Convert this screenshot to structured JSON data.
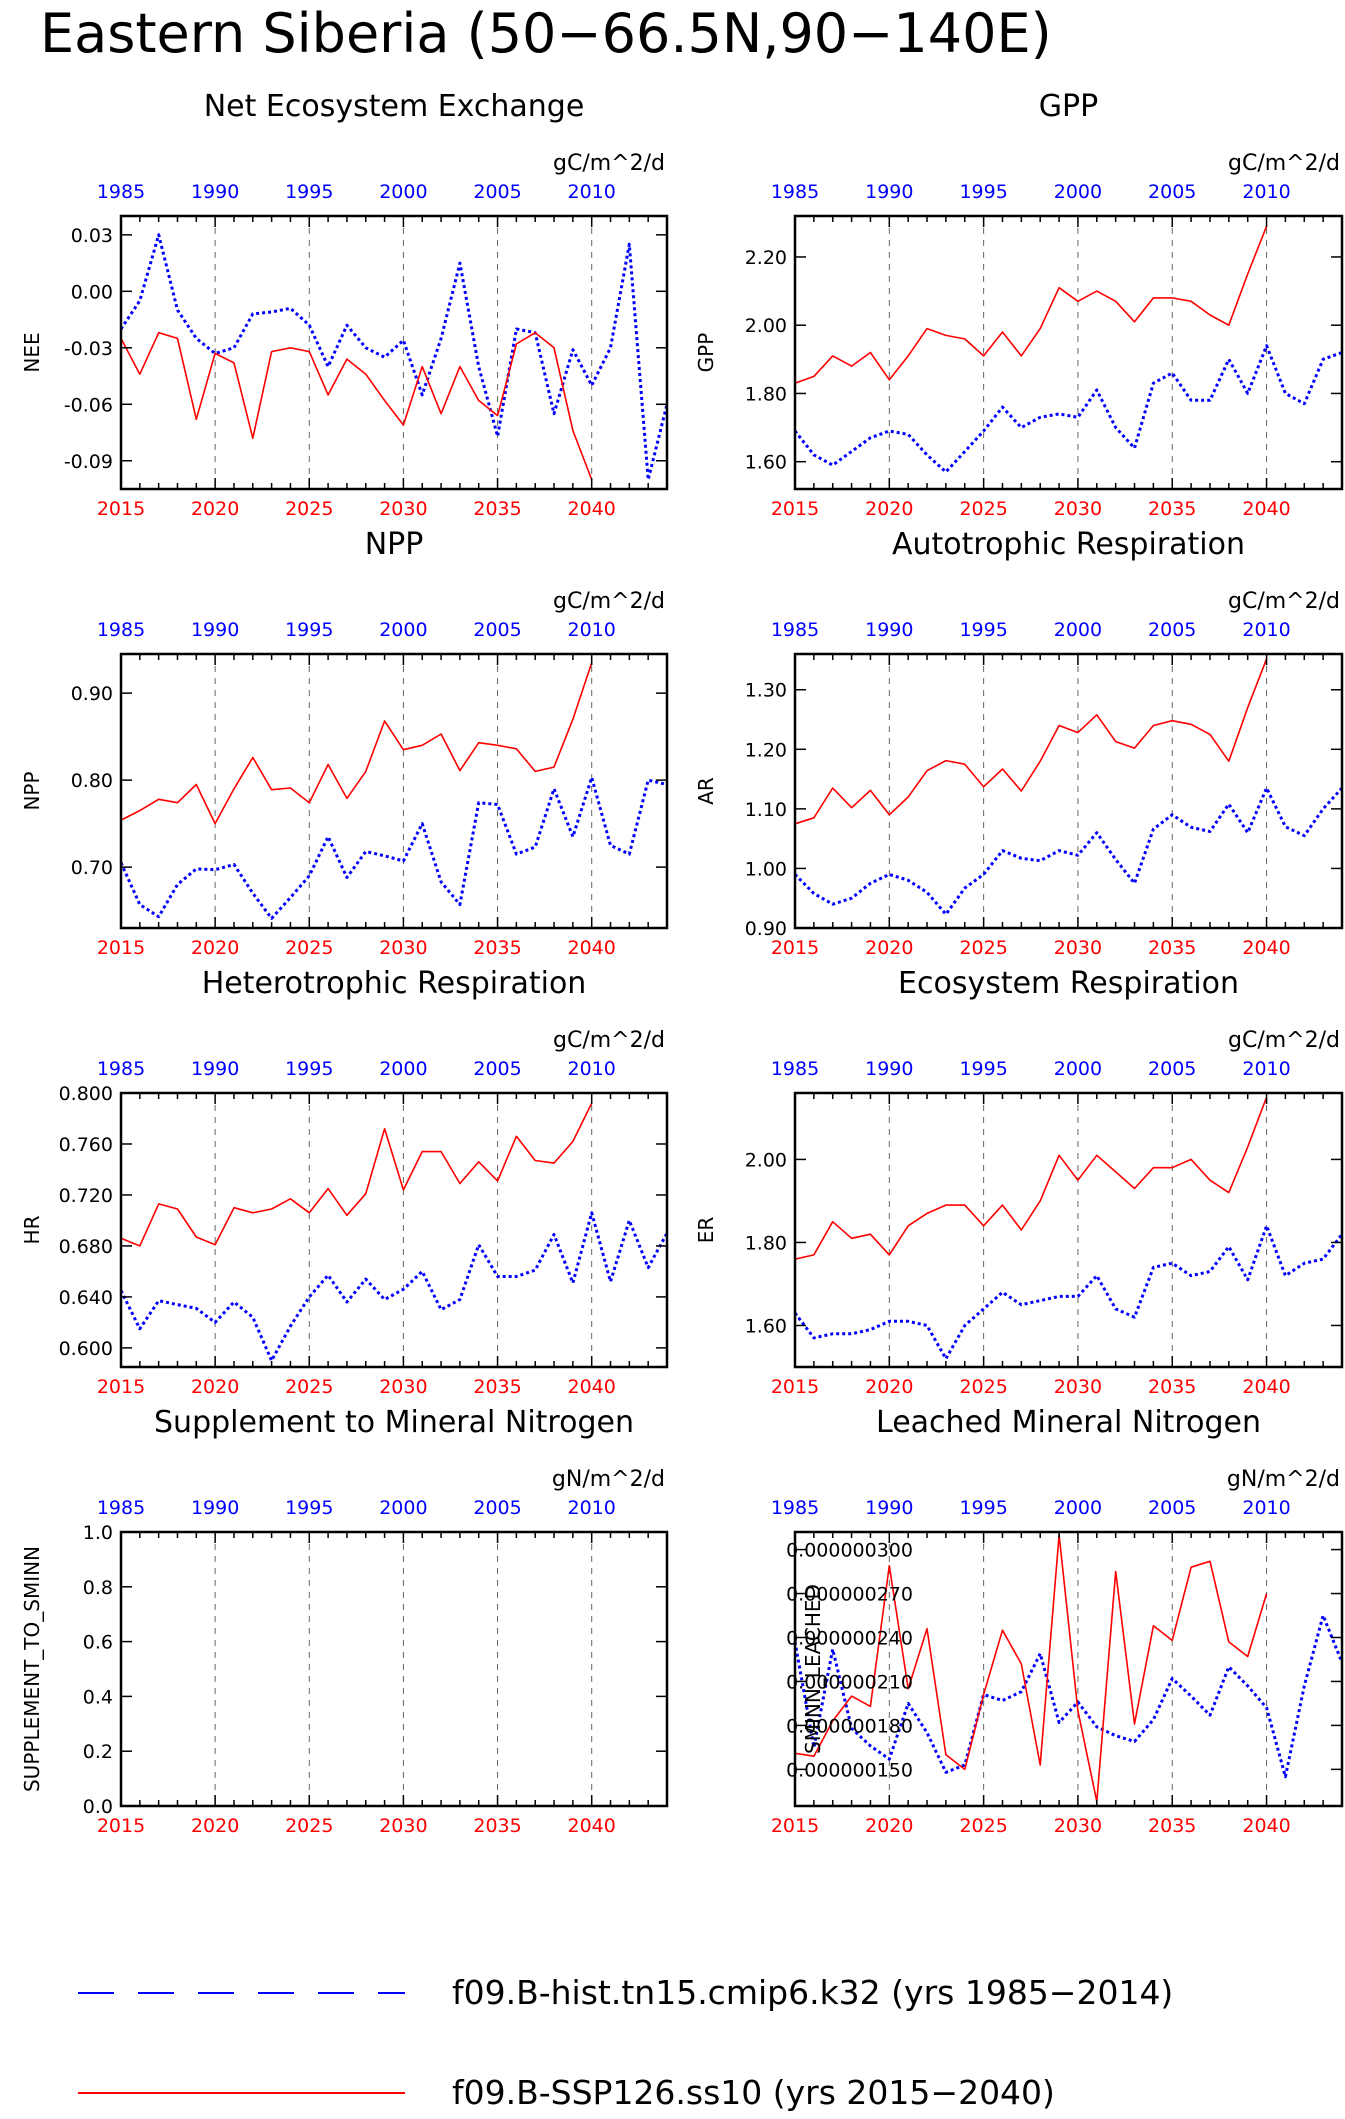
{
  "page_title": "Eastern Siberia (50−66.5N,90−140E)",
  "colors": {
    "hist": "#0000ff",
    "ssp": "#ff0000",
    "axis": "#000000",
    "refline": "#666666"
  },
  "legend": {
    "hist": {
      "label": "f09.B-hist.tn15.cmip6.k32 (yrs 1985−2014)",
      "style": "dashed",
      "color": "#0000ff"
    },
    "ssp": {
      "label": "f09.B-SSP126.ss10 (yrs 2015−2040)",
      "style": "solid",
      "color": "#ff0000"
    }
  },
  "chart_data": [
    {
      "type": "line",
      "title": "Net Ecosystem Exchange",
      "units": "gC/m^2/d",
      "ylabel": "NEE",
      "ylim": [
        -0.105,
        0.04
      ],
      "yticks": [
        0.03,
        0.0,
        -0.03,
        -0.06,
        -0.09
      ],
      "ytick_labels": [
        "0.03",
        "0.00",
        "-0.03",
        "-0.06",
        "-0.09"
      ],
      "xlim_bottom": [
        2015,
        2044
      ],
      "bottom_ticks": [
        2015,
        2020,
        2025,
        2030,
        2035,
        2040
      ],
      "top_ticks": [
        1985,
        1990,
        1995,
        2000,
        2005,
        2010
      ],
      "series": [
        {
          "period": "hist",
          "start": 1985,
          "values": [
            -0.02,
            -0.005,
            0.03,
            -0.01,
            -0.025,
            -0.033,
            -0.03,
            -0.012,
            -0.011,
            -0.009,
            -0.018,
            -0.04,
            -0.018,
            -0.03,
            -0.035,
            -0.026,
            -0.055,
            -0.025,
            0.015,
            -0.04,
            -0.077,
            -0.02,
            -0.022,
            -0.065,
            -0.031,
            -0.05,
            -0.03,
            0.025,
            -0.1,
            -0.06
          ]
        },
        {
          "period": "ssp",
          "start": 2015,
          "values": [
            -0.025,
            -0.044,
            -0.022,
            -0.025,
            -0.068,
            -0.033,
            -0.038,
            -0.078,
            -0.032,
            -0.03,
            -0.032,
            -0.055,
            -0.036,
            -0.044,
            -0.058,
            -0.071,
            -0.04,
            -0.065,
            -0.04,
            -0.058,
            -0.066,
            -0.028,
            -0.022,
            -0.03,
            -0.074,
            -0.1
          ]
        }
      ]
    },
    {
      "type": "line",
      "title": "GPP",
      "units": "gC/m^2/d",
      "ylabel": "GPP",
      "ylim": [
        1.52,
        2.32
      ],
      "yticks": [
        2.2,
        2.0,
        1.8,
        1.6
      ],
      "ytick_labels": [
        "2.20",
        "2.00",
        "1.80",
        "1.60"
      ],
      "xlim_bottom": [
        2015,
        2044
      ],
      "bottom_ticks": [
        2015,
        2020,
        2025,
        2030,
        2035,
        2040
      ],
      "top_ticks": [
        1985,
        1990,
        1995,
        2000,
        2005,
        2010
      ],
      "series": [
        {
          "period": "hist",
          "start": 1985,
          "values": [
            1.69,
            1.62,
            1.59,
            1.63,
            1.67,
            1.69,
            1.68,
            1.62,
            1.57,
            1.63,
            1.69,
            1.76,
            1.7,
            1.73,
            1.74,
            1.73,
            1.81,
            1.7,
            1.64,
            1.83,
            1.86,
            1.78,
            1.78,
            1.9,
            1.8,
            1.94,
            1.8,
            1.77,
            1.9,
            1.92
          ]
        },
        {
          "period": "ssp",
          "start": 2015,
          "values": [
            1.83,
            1.85,
            1.91,
            1.88,
            1.92,
            1.84,
            1.91,
            1.99,
            1.97,
            1.96,
            1.91,
            1.98,
            1.91,
            1.99,
            2.11,
            2.07,
            2.1,
            2.07,
            2.01,
            2.08,
            2.08,
            2.07,
            2.03,
            2.0,
            2.15,
            2.29
          ]
        }
      ]
    },
    {
      "type": "line",
      "title": "NPP",
      "units": "gC/m^2/d",
      "ylabel": "NPP",
      "ylim": [
        0.63,
        0.945
      ],
      "yticks": [
        0.9,
        0.8,
        0.7
      ],
      "ytick_labels": [
        "0.90",
        "0.80",
        "0.70"
      ],
      "xlim_bottom": [
        2015,
        2044
      ],
      "bottom_ticks": [
        2015,
        2020,
        2025,
        2030,
        2035,
        2040
      ],
      "top_ticks": [
        1985,
        1990,
        1995,
        2000,
        2005,
        2010
      ],
      "series": [
        {
          "period": "hist",
          "start": 1985,
          "values": [
            0.705,
            0.657,
            0.643,
            0.68,
            0.698,
            0.697,
            0.703,
            0.67,
            0.641,
            0.665,
            0.69,
            0.735,
            0.688,
            0.718,
            0.713,
            0.707,
            0.75,
            0.683,
            0.657,
            0.774,
            0.772,
            0.715,
            0.723,
            0.79,
            0.735,
            0.803,
            0.725,
            0.715,
            0.8,
            0.795
          ]
        },
        {
          "period": "ssp",
          "start": 2015,
          "values": [
            0.754,
            0.765,
            0.778,
            0.774,
            0.795,
            0.75,
            0.79,
            0.826,
            0.789,
            0.791,
            0.774,
            0.818,
            0.779,
            0.81,
            0.868,
            0.835,
            0.84,
            0.853,
            0.811,
            0.843,
            0.84,
            0.836,
            0.81,
            0.815,
            0.87,
            0.935
          ]
        }
      ]
    },
    {
      "type": "line",
      "title": "Autotrophic Respiration",
      "units": "gC/m^2/d",
      "ylabel": "AR",
      "ylim": [
        0.9,
        1.36
      ],
      "yticks": [
        1.3,
        1.2,
        1.1,
        1.0,
        0.9
      ],
      "ytick_labels": [
        "1.30",
        "1.20",
        "1.10",
        "1.00",
        "0.90"
      ],
      "xlim_bottom": [
        2015,
        2044
      ],
      "bottom_ticks": [
        2015,
        2020,
        2025,
        2030,
        2035,
        2040
      ],
      "top_ticks": [
        1985,
        1990,
        1995,
        2000,
        2005,
        2010
      ],
      "series": [
        {
          "period": "hist",
          "start": 1985,
          "values": [
            0.99,
            0.958,
            0.94,
            0.95,
            0.975,
            0.99,
            0.98,
            0.96,
            0.923,
            0.967,
            0.99,
            1.03,
            1.017,
            1.013,
            1.03,
            1.022,
            1.06,
            1.015,
            0.975,
            1.066,
            1.09,
            1.069,
            1.062,
            1.108,
            1.06,
            1.135,
            1.07,
            1.055,
            1.1,
            1.135
          ]
        },
        {
          "period": "ssp",
          "start": 2015,
          "values": [
            1.075,
            1.085,
            1.135,
            1.102,
            1.131,
            1.09,
            1.12,
            1.164,
            1.181,
            1.175,
            1.137,
            1.167,
            1.13,
            1.18,
            1.24,
            1.228,
            1.258,
            1.213,
            1.202,
            1.24,
            1.248,
            1.242,
            1.225,
            1.18,
            1.27,
            1.352
          ]
        }
      ]
    },
    {
      "type": "line",
      "title": "Heterotrophic Respiration",
      "units": "gC/m^2/d",
      "ylabel": "HR",
      "ylim": [
        0.585,
        0.8
      ],
      "yticks": [
        0.8,
        0.76,
        0.72,
        0.68,
        0.64,
        0.6
      ],
      "ytick_labels": [
        "0.800",
        "0.760",
        "0.720",
        "0.680",
        "0.640",
        "0.600"
      ],
      "xlim_bottom": [
        2015,
        2044
      ],
      "bottom_ticks": [
        2015,
        2020,
        2025,
        2030,
        2035,
        2040
      ],
      "top_ticks": [
        1985,
        1990,
        1995,
        2000,
        2005,
        2010
      ],
      "series": [
        {
          "period": "hist",
          "start": 1985,
          "values": [
            0.645,
            0.615,
            0.637,
            0.634,
            0.631,
            0.62,
            0.636,
            0.624,
            0.59,
            0.617,
            0.64,
            0.657,
            0.636,
            0.654,
            0.638,
            0.646,
            0.66,
            0.63,
            0.638,
            0.681,
            0.656,
            0.656,
            0.661,
            0.689,
            0.651,
            0.706,
            0.652,
            0.7,
            0.663,
            0.69
          ]
        },
        {
          "period": "ssp",
          "start": 2015,
          "values": [
            0.686,
            0.68,
            0.713,
            0.709,
            0.687,
            0.681,
            0.71,
            0.706,
            0.709,
            0.717,
            0.706,
            0.725,
            0.704,
            0.721,
            0.772,
            0.724,
            0.754,
            0.754,
            0.729,
            0.746,
            0.731,
            0.766,
            0.747,
            0.745,
            0.762,
            0.792
          ]
        }
      ]
    },
    {
      "type": "line",
      "title": "Ecosystem Respiration",
      "units": "gC/m^2/d",
      "ylabel": "ER",
      "ylim": [
        1.5,
        2.16
      ],
      "yticks": [
        2.0,
        1.8,
        1.6
      ],
      "ytick_labels": [
        "2.00",
        "1.80",
        "1.60"
      ],
      "xlim_bottom": [
        2015,
        2044
      ],
      "bottom_ticks": [
        2015,
        2020,
        2025,
        2030,
        2035,
        2040
      ],
      "top_ticks": [
        1985,
        1990,
        1995,
        2000,
        2005,
        2010
      ],
      "series": [
        {
          "period": "hist",
          "start": 1985,
          "values": [
            1.63,
            1.57,
            1.58,
            1.58,
            1.59,
            1.61,
            1.61,
            1.6,
            1.52,
            1.6,
            1.64,
            1.68,
            1.65,
            1.66,
            1.67,
            1.67,
            1.72,
            1.64,
            1.62,
            1.74,
            1.75,
            1.72,
            1.73,
            1.79,
            1.71,
            1.84,
            1.72,
            1.75,
            1.76,
            1.82
          ]
        },
        {
          "period": "ssp",
          "start": 2015,
          "values": [
            1.76,
            1.77,
            1.85,
            1.81,
            1.82,
            1.77,
            1.84,
            1.87,
            1.89,
            1.89,
            1.84,
            1.89,
            1.83,
            1.9,
            2.01,
            1.95,
            2.01,
            1.97,
            1.93,
            1.98,
            1.98,
            2.0,
            1.95,
            1.92,
            2.03,
            2.15
          ]
        }
      ]
    },
    {
      "type": "line",
      "title": "Supplement to Mineral Nitrogen",
      "units": "gN/m^2/d",
      "ylabel": "SUPPLEMENT_TO_SMINN",
      "ylim": [
        0.0,
        1.0
      ],
      "yticks": [
        1.0,
        0.8,
        0.6,
        0.4,
        0.2,
        0.0
      ],
      "ytick_labels": [
        "1.0",
        "0.8",
        "0.6",
        "0.4",
        "0.2",
        "0.0"
      ],
      "xlim_bottom": [
        2015,
        2044
      ],
      "bottom_ticks": [
        2015,
        2020,
        2025,
        2030,
        2035,
        2040
      ],
      "top_ticks": [
        1985,
        1990,
        1995,
        2000,
        2005,
        2010
      ],
      "series": []
    },
    {
      "type": "line",
      "title": "Leached Mineral Nitrogen",
      "units": "gN/m^2/d",
      "ylabel": "SMINN_LEACHED",
      "ylim": [
        1.25e-07,
        3.12e-07
      ],
      "yticks": [
        3e-07,
        2.7e-07,
        2.4e-07,
        2.1e-07,
        1.8e-07,
        1.5e-07
      ],
      "ytick_labels": [
        "0.000000300",
        "0.000000270",
        "0.000000240",
        "0.000000210",
        "0.000000180",
        "0.000000150"
      ],
      "xlim_bottom": [
        2015,
        2044
      ],
      "bottom_ticks": [
        2015,
        2020,
        2025,
        2030,
        2035,
        2040
      ],
      "top_ticks": [
        1985,
        1990,
        1995,
        2000,
        2005,
        2010
      ],
      "series": [
        {
          "period": "hist",
          "start": 1985,
          "values": [
            2.37e-07,
            1.65e-07,
            2.32e-07,
            1.78e-07,
            1.66e-07,
            1.57e-07,
            1.95e-07,
            1.75e-07,
            1.48e-07,
            1.53e-07,
            2.01e-07,
            1.97e-07,
            2.03e-07,
            2.29e-07,
            1.82e-07,
            1.96e-07,
            1.79e-07,
            1.73e-07,
            1.69e-07,
            1.84e-07,
            2.12e-07,
            2e-07,
            1.87e-07,
            2.2e-07,
            2.07e-07,
            1.92e-07,
            1.45e-07,
            2.07e-07,
            2.55e-07,
            2.23e-07
          ]
        },
        {
          "period": "ssp",
          "start": 2015,
          "values": [
            1.61e-07,
            1.59e-07,
            1.83e-07,
            2e-07,
            1.93e-07,
            2.89e-07,
            2.05e-07,
            2.46e-07,
            1.6e-07,
            1.5e-07,
            2.01e-07,
            2.45e-07,
            2.22e-07,
            1.53e-07,
            3.1e-07,
            1.9e-07,
            1.28e-07,
            2.85e-07,
            1.81e-07,
            2.48e-07,
            2.38e-07,
            2.88e-07,
            2.92e-07,
            2.37e-07,
            2.27e-07,
            2.7e-07
          ]
        }
      ]
    }
  ]
}
